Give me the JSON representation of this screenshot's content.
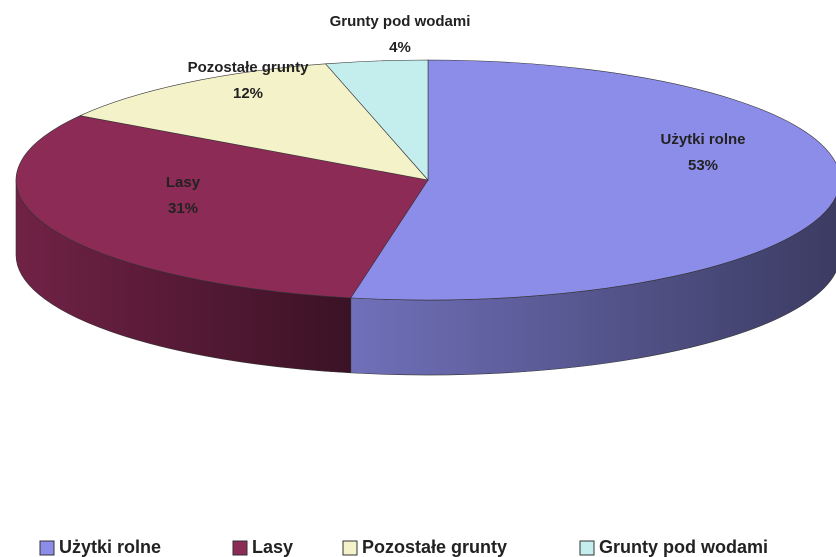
{
  "chart_data": {
    "type": "pie",
    "categories": [
      "Użytki rolne",
      "Lasy",
      "Pozostałe grunty",
      "Grunty pod wodami"
    ],
    "values": [
      53,
      31,
      12,
      4
    ],
    "value_labels": [
      "53%",
      "31%",
      "12%",
      "4%"
    ],
    "colors": [
      "#8c8ce9",
      "#8d2b57",
      "#f4f2c8",
      "#c4eeee"
    ],
    "legend": "bottom"
  }
}
